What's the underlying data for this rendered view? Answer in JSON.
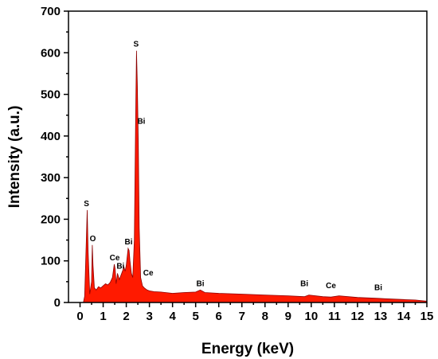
{
  "chart_data": {
    "type": "area",
    "title": "",
    "xlabel": "Energy (keV)",
    "ylabel": "Intensity (a.u.)",
    "xlim": [
      -0.5,
      15
    ],
    "ylim": [
      0,
      700
    ],
    "xticks": [
      0,
      1,
      2,
      3,
      4,
      5,
      6,
      7,
      8,
      9,
      10,
      11,
      12,
      13,
      14,
      15
    ],
    "yticks": [
      0,
      100,
      200,
      300,
      400,
      500,
      600,
      700
    ],
    "grid": false,
    "legend": "none",
    "fill_color": "#ff1a00",
    "edge_color": "#8b0000",
    "series": [
      {
        "x": [
          0.15,
          0.2,
          0.27,
          0.31,
          0.35,
          0.42,
          0.5,
          0.53,
          0.56,
          0.62,
          0.7,
          0.8,
          0.9,
          1.0,
          1.1,
          1.2,
          1.3,
          1.4,
          1.48,
          1.52,
          1.56,
          1.62,
          1.7,
          1.8,
          1.9,
          1.95,
          2.0,
          2.08,
          2.12,
          2.16,
          2.22,
          2.28,
          2.35,
          2.4,
          2.44,
          2.48,
          2.52,
          2.56,
          2.62,
          2.7,
          2.78,
          2.9,
          3.0,
          3.2,
          3.5,
          4.0,
          4.5,
          5.0,
          5.2,
          5.4,
          6.0,
          7.0,
          8.0,
          9.0,
          9.7,
          9.9,
          10.5,
          10.85,
          11.2,
          12.0,
          12.9,
          13.2,
          14.0,
          14.5,
          15.0
        ],
        "y": [
          2,
          15,
          150,
          222,
          120,
          20,
          50,
          138,
          90,
          35,
          30,
          38,
          35,
          40,
          45,
          42,
          48,
          60,
          92,
          80,
          45,
          70,
          55,
          70,
          85,
          75,
          90,
          130,
          125,
          100,
          70,
          60,
          150,
          420,
          605,
          520,
          380,
          180,
          60,
          40,
          35,
          30,
          28,
          26,
          25,
          22,
          24,
          25,
          30,
          24,
          22,
          20,
          18,
          16,
          14,
          18,
          14,
          13,
          16,
          12,
          10,
          9,
          7,
          6,
          3
        ]
      }
    ],
    "annotations": [
      {
        "text": "S",
        "x": 0.28,
        "y": 222
      },
      {
        "text": "O",
        "x": 0.55,
        "y": 138
      },
      {
        "text": "Ce",
        "x": 1.5,
        "y": 92
      },
      {
        "text": "Bi",
        "x": 1.75,
        "y": 72
      },
      {
        "text": "Bi",
        "x": 2.1,
        "y": 130
      },
      {
        "text": "S",
        "x": 2.42,
        "y": 605
      },
      {
        "text": "Bi",
        "x": 2.65,
        "y": 420
      },
      {
        "text": "Ce",
        "x": 2.95,
        "y": 55
      },
      {
        "text": "Bi",
        "x": 5.2,
        "y": 30
      },
      {
        "text": "Bi",
        "x": 9.7,
        "y": 30
      },
      {
        "text": "Ce",
        "x": 10.85,
        "y": 25
      },
      {
        "text": "Bi",
        "x": 12.9,
        "y": 20
      }
    ]
  }
}
